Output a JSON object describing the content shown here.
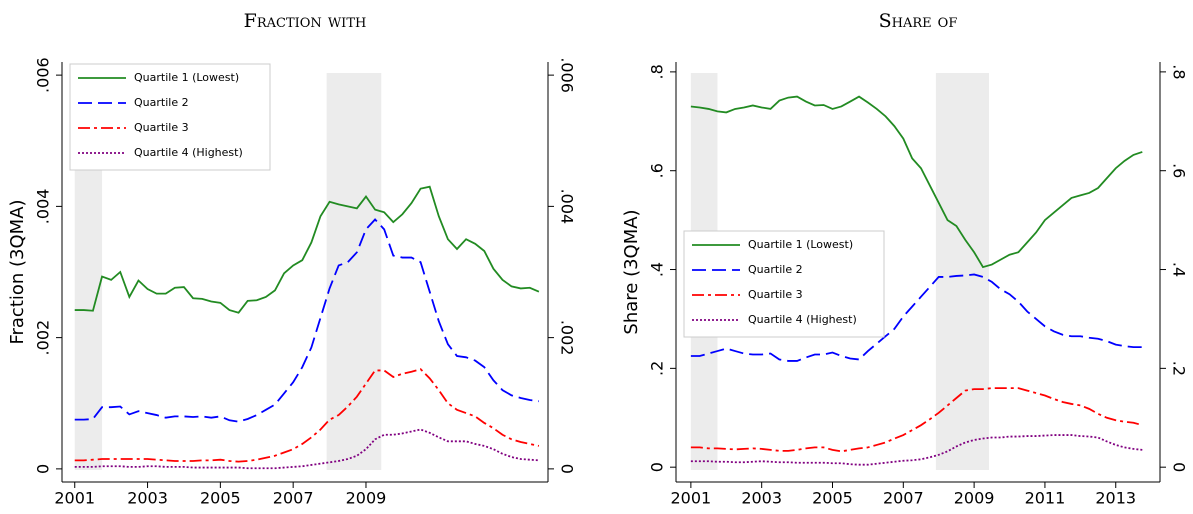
{
  "chart_data": [
    {
      "type": "line",
      "title": "Fraction with",
      "ylabel": "Fraction (3QMA)",
      "legend": "upper left",
      "xlim": [
        2000.65,
        2014
      ],
      "xticks": [
        2001,
        2003,
        2005,
        2007,
        2009
      ],
      "ylim": [
        -0.0002,
        0.0062
      ],
      "yticks": [
        0,
        {
          "value": 0.002,
          "label": ".002"
        },
        {
          "value": 0.004,
          "label": ".004"
        },
        {
          "value": 0.006,
          "label": ".006"
        }
      ],
      "y2lim": [
        -0.0002,
        0.0062
      ],
      "y2ticks": [
        0,
        {
          "value": 0.002,
          "label": ".002"
        },
        {
          "value": 0.004,
          "label": ".004"
        },
        {
          "value": 0.006,
          "label": ".006"
        }
      ],
      "shaded": [
        [
          2001,
          2001.75
        ],
        [
          2007.92,
          2009.42
        ]
      ],
      "x": [
        2001,
        2001.25,
        2001.5,
        2001.75,
        2002,
        2002.25,
        2002.5,
        2002.75,
        2003,
        2003.25,
        2003.5,
        2003.75,
        2004,
        2004.25,
        2004.5,
        2004.75,
        2005,
        2005.25,
        2005.5,
        2005.75,
        2006,
        2006.25,
        2006.5,
        2006.75,
        2007,
        2007.25,
        2007.5,
        2007.75,
        2008,
        2008.25,
        2008.5,
        2008.75,
        2009,
        2009.25,
        2009.5,
        2009.75,
        2010,
        2010.25,
        2010.5,
        2010.75,
        2011,
        2011.25,
        2011.5,
        2011.75,
        2012,
        2012.25,
        2012.5,
        2012.75,
        2013,
        2013.25,
        2013.5,
        2013.75
      ],
      "series": [
        {
          "name": "Quartile 1 (Lowest)",
          "color": "#228b22",
          "style": "solid",
          "values": [
            0.00242,
            0.00242,
            0.00241,
            0.00293,
            0.00288,
            0.003,
            0.00262,
            0.00287,
            0.00274,
            0.00267,
            0.00267,
            0.00276,
            0.00277,
            0.0026,
            0.00259,
            0.00255,
            0.00253,
            0.00242,
            0.00238,
            0.00256,
            0.00257,
            0.00262,
            0.00272,
            0.00298,
            0.0031,
            0.00318,
            0.00345,
            0.00385,
            0.00407,
            0.00403,
            0.004,
            0.00397,
            0.00415,
            0.00395,
            0.00391,
            0.00376,
            0.00388,
            0.00405,
            0.00427,
            0.0043,
            0.00385,
            0.0035,
            0.00335,
            0.0035,
            0.00343,
            0.00332,
            0.00305,
            0.00288,
            0.00278,
            0.00275,
            0.00276,
            0.0027
          ]
        },
        {
          "name": "Quartile 2",
          "color": "#0000ff",
          "style": "dashed",
          "values": [
            0.00075,
            0.00075,
            0.00076,
            0.00094,
            0.00094,
            0.00095,
            0.00083,
            0.00088,
            0.00085,
            0.00082,
            0.00078,
            0.0008,
            0.0008,
            0.00079,
            0.0008,
            0.00078,
            0.0008,
            0.00074,
            0.00072,
            0.00076,
            0.00082,
            0.0009,
            0.00098,
            0.00115,
            0.00132,
            0.00155,
            0.00185,
            0.0023,
            0.00275,
            0.0031,
            0.00315,
            0.0033,
            0.00365,
            0.0038,
            0.00365,
            0.00325,
            0.00322,
            0.00322,
            0.00315,
            0.0027,
            0.00225,
            0.0019,
            0.00172,
            0.0017,
            0.00165,
            0.00155,
            0.00135,
            0.0012,
            0.00112,
            0.00108,
            0.00105,
            0.00103
          ]
        },
        {
          "name": "Quartile 3",
          "color": "#ff0000",
          "style": "dashdot",
          "values": [
            0.00013,
            0.00013,
            0.00014,
            0.00015,
            0.00015,
            0.00015,
            0.00015,
            0.00015,
            0.00015,
            0.00014,
            0.00013,
            0.00012,
            0.00012,
            0.00012,
            0.00013,
            0.00013,
            0.00014,
            0.00012,
            0.00011,
            0.00012,
            0.00014,
            0.00017,
            0.0002,
            0.00025,
            0.0003,
            0.00038,
            0.00048,
            0.0006,
            0.00075,
            0.00082,
            0.00095,
            0.0011,
            0.0013,
            0.0015,
            0.0015,
            0.0014,
            0.00145,
            0.00148,
            0.00152,
            0.00138,
            0.0012,
            0.001,
            0.0009,
            0.00085,
            0.0008,
            0.0007,
            0.00062,
            0.00052,
            0.00045,
            0.00041,
            0.00038,
            0.00035
          ]
        },
        {
          "name": "Quartile 4 (Highest)",
          "color": "#800080",
          "style": "dotted",
          "values": [
            3e-05,
            3e-05,
            3e-05,
            4e-05,
            4e-05,
            4e-05,
            3e-05,
            3e-05,
            4e-05,
            4e-05,
            3e-05,
            3e-05,
            3e-05,
            2e-05,
            2e-05,
            2e-05,
            2e-05,
            2e-05,
            2e-05,
            1e-05,
            1e-05,
            1e-05,
            1e-05,
            2e-05,
            3e-05,
            4e-05,
            6e-05,
            8e-05,
            0.0001,
            0.00012,
            0.00015,
            0.0002,
            0.0003,
            0.00045,
            0.00052,
            0.00052,
            0.00054,
            0.00057,
            0.0006,
            0.00055,
            0.00048,
            0.00042,
            0.00042,
            0.00042,
            0.00038,
            0.00035,
            0.0003,
            0.00023,
            0.00018,
            0.00015,
            0.00014,
            0.00013
          ]
        }
      ]
    },
    {
      "type": "line",
      "title": "Share of",
      "ylabel": "Share (3QMA)",
      "legend": "center left",
      "xlim": [
        2000.58,
        2014.25
      ],
      "xticks": [
        2001,
        2003,
        2005,
        2007,
        2009,
        2011,
        2013
      ],
      "ylim": [
        -0.03,
        0.82
      ],
      "yticks": [
        0,
        {
          "value": 0.2,
          "label": ".2"
        },
        {
          "value": 0.4,
          "label": ".4"
        },
        {
          "value": 0.6,
          "label": ".6"
        },
        {
          "value": 0.8,
          "label": ".8"
        }
      ],
      "y2lim": [
        -0.03,
        0.82
      ],
      "y2ticks": [
        0,
        {
          "value": 0.2,
          "label": ".2"
        },
        {
          "value": 0.4,
          "label": ".4"
        },
        {
          "value": 0.6,
          "label": ".6"
        },
        {
          "value": 0.8,
          "label": ".8"
        }
      ],
      "shaded": [
        [
          2001,
          2001.75
        ],
        [
          2007.92,
          2009.42
        ]
      ],
      "x": [
        2001,
        2001.25,
        2001.5,
        2001.75,
        2002,
        2002.25,
        2002.5,
        2002.75,
        2003,
        2003.25,
        2003.5,
        2003.75,
        2004,
        2004.25,
        2004.5,
        2004.75,
        2005,
        2005.25,
        2005.5,
        2005.75,
        2006,
        2006.25,
        2006.5,
        2006.75,
        2007,
        2007.25,
        2007.5,
        2007.75,
        2008,
        2008.25,
        2008.5,
        2008.75,
        2009,
        2009.25,
        2009.5,
        2009.75,
        2010,
        2010.25,
        2010.5,
        2010.75,
        2011,
        2011.25,
        2011.5,
        2011.75,
        2012,
        2012.25,
        2012.5,
        2012.75,
        2013,
        2013.25,
        2013.5,
        2013.75
      ],
      "series": [
        {
          "name": "Quartile 1 (Lowest)",
          "color": "#228b22",
          "style": "solid",
          "values": [
            0.73,
            0.728,
            0.725,
            0.72,
            0.718,
            0.725,
            0.728,
            0.732,
            0.728,
            0.725,
            0.742,
            0.748,
            0.75,
            0.74,
            0.732,
            0.733,
            0.725,
            0.73,
            0.74,
            0.75,
            0.738,
            0.725,
            0.71,
            0.69,
            0.665,
            0.625,
            0.605,
            0.57,
            0.535,
            0.5,
            0.488,
            0.46,
            0.435,
            0.405,
            0.41,
            0.42,
            0.43,
            0.435,
            0.455,
            0.475,
            0.5,
            0.515,
            0.53,
            0.545,
            0.55,
            0.555,
            0.565,
            0.585,
            0.605,
            0.62,
            0.632,
            0.638
          ]
        },
        {
          "name": "Quartile 2",
          "color": "#0000ff",
          "style": "dashed",
          "values": [
            0.225,
            0.225,
            0.23,
            0.235,
            0.24,
            0.235,
            0.23,
            0.228,
            0.228,
            0.23,
            0.218,
            0.215,
            0.215,
            0.222,
            0.228,
            0.228,
            0.232,
            0.225,
            0.22,
            0.218,
            0.235,
            0.25,
            0.265,
            0.28,
            0.305,
            0.325,
            0.345,
            0.365,
            0.385,
            0.385,
            0.387,
            0.388,
            0.39,
            0.385,
            0.375,
            0.36,
            0.35,
            0.335,
            0.315,
            0.3,
            0.285,
            0.275,
            0.268,
            0.265,
            0.265,
            0.262,
            0.26,
            0.255,
            0.248,
            0.245,
            0.243,
            0.243
          ]
        },
        {
          "name": "Quartile 3",
          "color": "#ff0000",
          "style": "dashdot",
          "values": [
            0.04,
            0.04,
            0.038,
            0.038,
            0.037,
            0.036,
            0.037,
            0.038,
            0.037,
            0.035,
            0.033,
            0.033,
            0.035,
            0.038,
            0.04,
            0.04,
            0.035,
            0.032,
            0.035,
            0.038,
            0.04,
            0.045,
            0.05,
            0.058,
            0.065,
            0.075,
            0.085,
            0.097,
            0.11,
            0.125,
            0.14,
            0.155,
            0.158,
            0.158,
            0.16,
            0.16,
            0.16,
            0.16,
            0.155,
            0.15,
            0.145,
            0.138,
            0.132,
            0.128,
            0.125,
            0.118,
            0.108,
            0.1,
            0.095,
            0.092,
            0.09,
            0.085
          ]
        },
        {
          "name": "Quartile 4 (Highest)",
          "color": "#800080",
          "style": "dotted",
          "values": [
            0.012,
            0.012,
            0.012,
            0.011,
            0.011,
            0.01,
            0.01,
            0.011,
            0.012,
            0.011,
            0.01,
            0.01,
            0.009,
            0.009,
            0.009,
            0.009,
            0.008,
            0.008,
            0.006,
            0.005,
            0.005,
            0.007,
            0.009,
            0.011,
            0.013,
            0.014,
            0.016,
            0.02,
            0.025,
            0.032,
            0.042,
            0.05,
            0.055,
            0.058,
            0.06,
            0.06,
            0.062,
            0.062,
            0.063,
            0.063,
            0.064,
            0.065,
            0.065,
            0.065,
            0.063,
            0.062,
            0.06,
            0.052,
            0.045,
            0.04,
            0.037,
            0.035
          ]
        }
      ]
    }
  ]
}
